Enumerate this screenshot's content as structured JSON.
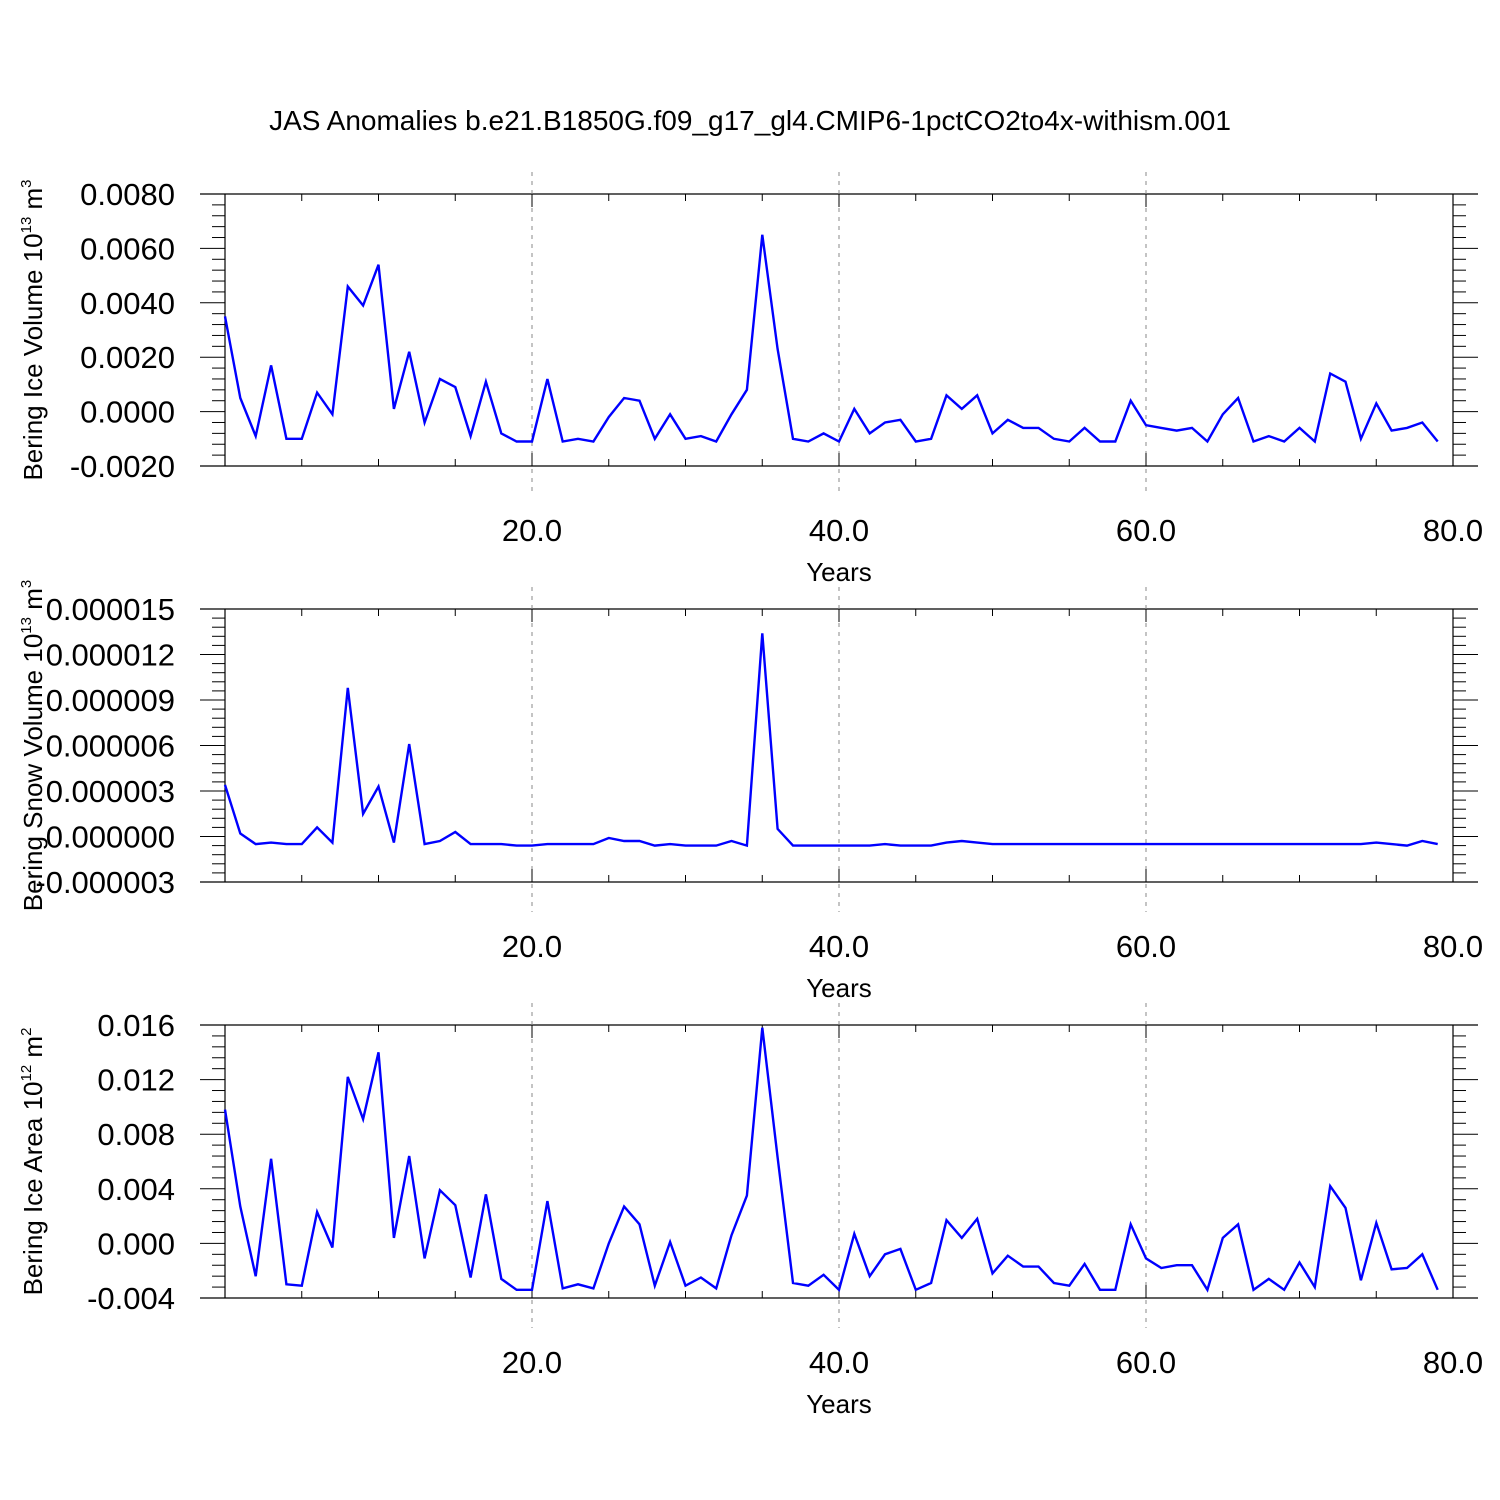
{
  "title": "JAS Anomalies b.e21.B1850G.f09_g17_gl4.CMIP6-1pctCO2to4x-withism.001",
  "colors": {
    "series": "#0000ff",
    "axes": "#000000",
    "grid": "#888888"
  },
  "chart_data": [
    {
      "type": "line",
      "ylabel_main": "Bering Ice Volume 10",
      "ylabel_exp": "13",
      "ylabel_unit": " m",
      "ylabel_unit_exp": "3",
      "xlabel": "Years",
      "xlim": [
        0.0,
        80.0
      ],
      "ylim": [
        -0.002,
        0.008
      ],
      "xticks": [
        20,
        40,
        60,
        80
      ],
      "xtick_labels": [
        "20.0",
        "40.0",
        "60.0",
        "80.0"
      ],
      "yticks": [
        -0.002,
        0.0,
        0.002,
        0.004,
        0.006,
        0.008
      ],
      "ytick_labels": [
        "-0.0020",
        "0.0000",
        "0.0020",
        "0.0040",
        "0.0060",
        "0.0080"
      ],
      "grid": "vertical dashed at 20, 40, 60",
      "series": [
        {
          "values": [
            0.0035,
            0.0005,
            -0.0009,
            0.0017,
            -0.001,
            -0.001,
            0.0007,
            -0.0001,
            0.0046,
            0.0039,
            0.0054,
            0.0001,
            0.0022,
            -0.0004,
            0.0012,
            0.0009,
            -0.0009,
            0.0011,
            -0.0008,
            -0.0011,
            -0.0011,
            0.0012,
            -0.0011,
            -0.001,
            -0.0011,
            -0.0002,
            0.0005,
            0.0004,
            -0.001,
            -0.0001,
            -0.001,
            -0.0009,
            -0.0011,
            -0.0001,
            0.0008,
            0.0065,
            0.0023,
            -0.001,
            -0.0011,
            -0.0008,
            -0.0011,
            0.0001,
            -0.0008,
            -0.0004,
            -0.0003,
            -0.0011,
            -0.001,
            0.0006,
            0.0001,
            0.0006,
            -0.0008,
            -0.0003,
            -0.0006,
            -0.0006,
            -0.001,
            -0.0011,
            -0.0006,
            -0.0011,
            -0.0011,
            0.0004,
            -0.0005,
            -0.0006,
            -0.0007,
            -0.0006,
            -0.0011,
            -0.0001,
            0.0005,
            -0.0011,
            -0.0009,
            -0.0011,
            -0.0006,
            -0.0011,
            0.0014,
            0.0011,
            -0.001,
            0.0003,
            -0.0007,
            -0.0006,
            -0.0004,
            -0.0011
          ]
        }
      ]
    },
    {
      "type": "line",
      "ylabel_main": "Bering Snow Volume 10",
      "ylabel_exp": "13",
      "ylabel_unit": " m",
      "ylabel_unit_exp": "3",
      "xlabel": "Years",
      "xlim": [
        0.0,
        80.0
      ],
      "ylim": [
        -3e-06,
        1.5e-05
      ],
      "xticks": [
        20,
        40,
        60,
        80
      ],
      "xtick_labels": [
        "20.0",
        "40.0",
        "60.0",
        "80.0"
      ],
      "yticks": [
        -3e-06,
        0.0,
        3e-06,
        6e-06,
        9e-06,
        1.2e-05,
        1.5e-05
      ],
      "ytick_labels": [
        "-0.000003",
        "0.000000",
        "0.000003",
        "0.000006",
        "0.000009",
        "0.000012",
        "0.000015"
      ],
      "grid": "vertical dashed at 20, 40, 60",
      "series": [
        {
          "values": [
            3.4e-06,
            2e-07,
            -5e-07,
            -4e-07,
            -5e-07,
            -5e-07,
            6e-07,
            -4e-07,
            9.8e-06,
            1.5e-06,
            3.3e-06,
            -4e-07,
            6.1e-06,
            -5e-07,
            -3e-07,
            3e-07,
            -5e-07,
            -5e-07,
            -5e-07,
            -6e-07,
            -6e-07,
            -5e-07,
            -5e-07,
            -5e-07,
            -5e-07,
            -1e-07,
            -3e-07,
            -3e-07,
            -6e-07,
            -5e-07,
            -6e-07,
            -6e-07,
            -6e-07,
            -3e-07,
            -6e-07,
            1.34e-05,
            5e-07,
            -6e-07,
            -6e-07,
            -6e-07,
            -6e-07,
            -6e-07,
            -6e-07,
            -5e-07,
            -6e-07,
            -6e-07,
            -6e-07,
            -4e-07,
            -3e-07,
            -4e-07,
            -5e-07,
            -5e-07,
            -5e-07,
            -5e-07,
            -5e-07,
            -5e-07,
            -5e-07,
            -5e-07,
            -5e-07,
            -5e-07,
            -5e-07,
            -5e-07,
            -5e-07,
            -5e-07,
            -5e-07,
            -5e-07,
            -5e-07,
            -5e-07,
            -5e-07,
            -5e-07,
            -5e-07,
            -5e-07,
            -5e-07,
            -5e-07,
            -5e-07,
            -4e-07,
            -5e-07,
            -6e-07,
            -3e-07,
            -5e-07
          ]
        }
      ]
    },
    {
      "type": "line",
      "ylabel_main": "Bering Ice Area 10",
      "ylabel_exp": "12",
      "ylabel_unit": " m",
      "ylabel_unit_exp": "2",
      "xlabel": "Years",
      "xlim": [
        0.0,
        80.0
      ],
      "ylim": [
        -0.004,
        0.016
      ],
      "xticks": [
        20,
        40,
        60,
        80
      ],
      "xtick_labels": [
        "20.0",
        "40.0",
        "60.0",
        "80.0"
      ],
      "yticks": [
        -0.004,
        0.0,
        0.004,
        0.008,
        0.012,
        0.016
      ],
      "ytick_labels": [
        "-0.004",
        "0.000",
        "0.004",
        "0.008",
        "0.012",
        "0.016"
      ],
      "grid": "vertical dashed at 20, 40, 60",
      "series": [
        {
          "values": [
            0.0098,
            0.0027,
            -0.0024,
            0.0062,
            -0.003,
            -0.0031,
            0.0023,
            -0.0003,
            0.0122,
            0.0091,
            0.014,
            0.0004,
            0.0064,
            -0.0011,
            0.0039,
            0.0028,
            -0.0025,
            0.0036,
            -0.0026,
            -0.0034,
            -0.0034,
            0.0031,
            -0.0033,
            -0.003,
            -0.0033,
            0.0,
            0.0027,
            0.0014,
            -0.0031,
            0.0001,
            -0.0031,
            -0.0025,
            -0.0033,
            0.0006,
            0.0035,
            0.0158,
            0.0063,
            -0.0029,
            -0.0031,
            -0.0023,
            -0.0034,
            0.0007,
            -0.0024,
            -0.0008,
            -0.0004,
            -0.0034,
            -0.0029,
            0.0017,
            0.0004,
            0.0018,
            -0.0022,
            -0.0009,
            -0.0017,
            -0.0017,
            -0.0029,
            -0.0031,
            -0.0015,
            -0.0034,
            -0.0034,
            0.0014,
            -0.0011,
            -0.0018,
            -0.0016,
            -0.0016,
            -0.0034,
            0.0004,
            0.0014,
            -0.0034,
            -0.0026,
            -0.0034,
            -0.0014,
            -0.0032,
            0.0042,
            0.0026,
            -0.0027,
            0.0015,
            -0.0019,
            -0.0018,
            -0.0008,
            -0.0034
          ]
        }
      ]
    }
  ]
}
